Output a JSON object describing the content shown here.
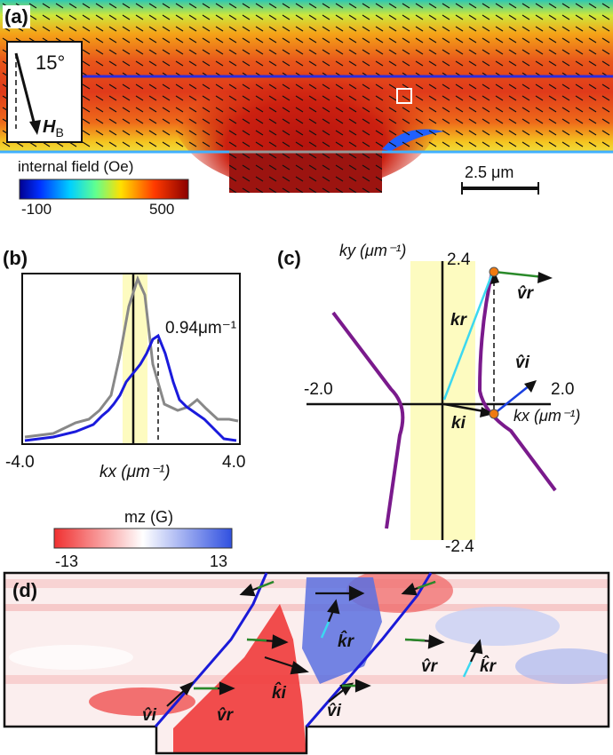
{
  "panel_a": {
    "label": "(a)",
    "angle_text": "15°",
    "field_symbol": "H",
    "field_subscript": "B",
    "colorbar": {
      "title": "internal field (Oe)",
      "min_label": "-100",
      "max_label": "500",
      "min": -100,
      "max": 500
    },
    "scale_bar_label": "2.5 μm"
  },
  "panel_b": {
    "label": "(b)",
    "annotation": "0.94μm⁻¹",
    "peak_kx": 0.94,
    "x_tick_left": "-4.0",
    "x_tick_right": "4.0",
    "x_label": "kx (μm⁻¹)",
    "xlim": [
      -4.0,
      4.0
    ],
    "series": [
      {
        "color": "#888888"
      },
      {
        "color": "#1a1adc"
      }
    ]
  },
  "panel_c": {
    "label": "(c)",
    "y_label": "ky (μm⁻¹)",
    "x_label": "kx (μm⁻¹)",
    "tick_top": "2.4",
    "tick_bottom": "-2.4",
    "tick_left": "-2.0",
    "tick_right": "2.0",
    "label_kr": "kr",
    "label_ki": "ki",
    "label_vr": "v̂r",
    "label_vi": "v̂i",
    "curve_color": "#7a1a8c",
    "highlight_color": "#fdfbc0"
  },
  "panel_d": {
    "label": "(d)",
    "colorbar": {
      "title": "mz (G)",
      "min_label": "-13",
      "max_label": "13",
      "min": -13,
      "max": 13
    },
    "labels": {
      "vi": "v̂i",
      "vr": "v̂r",
      "ki": "k̂i",
      "kr": "k̂r"
    }
  }
}
